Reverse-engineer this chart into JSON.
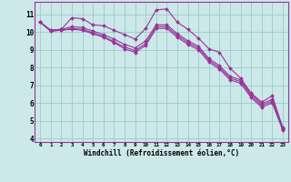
{
  "xlabel": "Windchill (Refroidissement éolien,°C)",
  "ylabel": "",
  "bg_color": "#cce8e8",
  "line_color": "#993399",
  "grid_color": "#99cccc",
  "xlim_min": -0.5,
  "xlim_max": 23.5,
  "ylim_min": 3.8,
  "ylim_max": 11.7,
  "yticks": [
    4,
    5,
    6,
    7,
    8,
    9,
    10,
    11
  ],
  "xticks": [
    0,
    1,
    2,
    3,
    4,
    5,
    6,
    7,
    8,
    9,
    10,
    11,
    12,
    13,
    14,
    15,
    16,
    17,
    18,
    19,
    20,
    21,
    22,
    23
  ],
  "series": [
    [
      10.55,
      10.1,
      10.15,
      10.8,
      10.75,
      10.4,
      10.35,
      10.1,
      9.85,
      9.6,
      10.2,
      11.25,
      11.3,
      10.55,
      10.15,
      9.65,
      9.05,
      8.85,
      7.95,
      7.4,
      6.55,
      6.05,
      6.4,
      4.6
    ],
    [
      10.55,
      10.1,
      10.15,
      10.3,
      10.25,
      10.05,
      9.85,
      9.6,
      9.3,
      9.1,
      9.5,
      10.4,
      10.4,
      9.9,
      9.5,
      9.2,
      8.5,
      8.1,
      7.5,
      7.3,
      6.5,
      5.95,
      6.2,
      4.55
    ],
    [
      10.55,
      10.05,
      10.1,
      10.2,
      10.15,
      9.95,
      9.75,
      9.45,
      9.15,
      8.95,
      9.35,
      10.3,
      10.3,
      9.8,
      9.4,
      9.1,
      8.4,
      8.0,
      7.4,
      7.2,
      6.4,
      5.85,
      6.1,
      4.5
    ],
    [
      10.55,
      10.05,
      10.1,
      10.15,
      10.1,
      9.9,
      9.7,
      9.4,
      9.05,
      8.85,
      9.25,
      10.2,
      10.2,
      9.7,
      9.3,
      9.0,
      8.3,
      7.9,
      7.3,
      7.1,
      6.3,
      5.75,
      6.0,
      4.45
    ]
  ]
}
